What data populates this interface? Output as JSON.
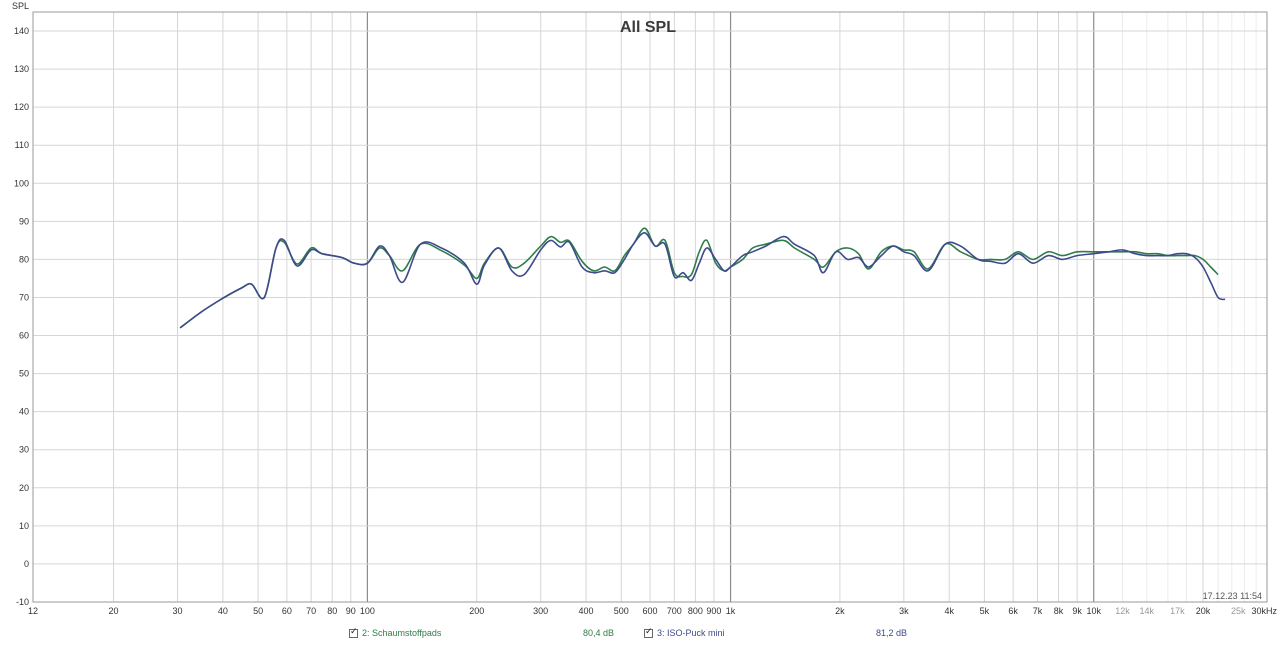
{
  "chart_data": {
    "type": "line",
    "title": "All SPL",
    "ylabel": "SPL",
    "xlabel": "",
    "xscale": "log",
    "xlim": [
      12,
      30000
    ],
    "ylim": [
      -10,
      145
    ],
    "grid": true,
    "y_ticks": [
      -10,
      0,
      10,
      20,
      30,
      40,
      50,
      60,
      70,
      80,
      90,
      100,
      110,
      120,
      130,
      140
    ],
    "x_ticks": [
      {
        "v": 12,
        "label": "12"
      },
      {
        "v": 20,
        "label": "20"
      },
      {
        "v": 30,
        "label": "30"
      },
      {
        "v": 40,
        "label": "40"
      },
      {
        "v": 50,
        "label": "50"
      },
      {
        "v": 60,
        "label": "60"
      },
      {
        "v": 70,
        "label": "70"
      },
      {
        "v": 80,
        "label": "80"
      },
      {
        "v": 90,
        "label": "90"
      },
      {
        "v": 100,
        "label": "100"
      },
      {
        "v": 200,
        "label": "200"
      },
      {
        "v": 300,
        "label": "300"
      },
      {
        "v": 400,
        "label": "400"
      },
      {
        "v": 500,
        "label": "500"
      },
      {
        "v": 600,
        "label": "600"
      },
      {
        "v": 700,
        "label": "700"
      },
      {
        "v": 800,
        "label": "800"
      },
      {
        "v": 900,
        "label": "900"
      },
      {
        "v": 1000,
        "label": "1k"
      },
      {
        "v": 2000,
        "label": "2k"
      },
      {
        "v": 3000,
        "label": "3k"
      },
      {
        "v": 4000,
        "label": "4k"
      },
      {
        "v": 5000,
        "label": "5k"
      },
      {
        "v": 6000,
        "label": "6k"
      },
      {
        "v": 7000,
        "label": "7k"
      },
      {
        "v": 8000,
        "label": "8k"
      },
      {
        "v": 9000,
        "label": "9k"
      },
      {
        "v": 10000,
        "label": "10k"
      },
      {
        "v": 12000,
        "label": "12k"
      },
      {
        "v": 14000,
        "label": "14k"
      },
      {
        "v": 17000,
        "label": "17k"
      },
      {
        "v": 20000,
        "label": "20k"
      },
      {
        "v": 25000,
        "label": "25k"
      },
      {
        "v": 30000,
        "label": "30kHz"
      }
    ],
    "series": [
      {
        "name": "2: Schaumstoffpads",
        "color": "#2e7d4a",
        "x": [
          30.5,
          35,
          40,
          45,
          48,
          52,
          56,
          59,
          64,
          70,
          75,
          85,
          92,
          100,
          108,
          115,
          125,
          140,
          160,
          185,
          200,
          210,
          230,
          250,
          270,
          300,
          320,
          340,
          360,
          390,
          420,
          450,
          480,
          510,
          540,
          580,
          620,
          660,
          700,
          740,
          780,
          820,
          860,
          910,
          960,
          1000,
          1080,
          1150,
          1250,
          1400,
          1500,
          1700,
          1800,
          1950,
          2100,
          2250,
          2400,
          2600,
          2800,
          3000,
          3200,
          3500,
          3900,
          4300,
          4800,
          5200,
          5700,
          6200,
          6800,
          7500,
          8200,
          9000,
          10000,
          11000,
          12000,
          13000,
          14000,
          15000,
          16000,
          17000,
          18000,
          19000,
          20000,
          21000,
          22000
        ],
        "y": [
          62,
          66.3,
          69.8,
          72.5,
          73.5,
          70,
          83,
          84.5,
          78.8,
          83,
          81.5,
          80.5,
          79,
          79,
          83,
          81,
          77,
          84,
          82.3,
          78.5,
          75,
          79,
          83,
          78,
          79,
          83.5,
          86,
          84.5,
          84.8,
          79.5,
          77,
          78,
          77,
          81,
          84,
          88.2,
          83.5,
          85,
          76.5,
          75.5,
          76,
          82,
          85,
          79,
          77,
          78,
          80,
          83,
          84,
          85,
          83,
          80,
          78,
          82,
          83,
          81.5,
          77.5,
          82,
          83.5,
          82.5,
          82,
          77.5,
          84,
          82,
          80,
          80,
          80,
          82,
          80,
          82,
          81,
          82,
          82,
          82,
          82,
          82,
          81.5,
          81.5,
          81,
          81,
          81,
          81,
          80,
          78,
          76
        ]
      },
      {
        "name": "3: ISO-Puck mini",
        "color": "#3f4a8c",
        "x": [
          30.5,
          35,
          40,
          45,
          48,
          52,
          56,
          59,
          64,
          70,
          75,
          85,
          92,
          100,
          108,
          115,
          125,
          140,
          160,
          185,
          200,
          210,
          230,
          250,
          270,
          300,
          320,
          340,
          360,
          390,
          420,
          450,
          480,
          510,
          540,
          580,
          620,
          660,
          700,
          740,
          780,
          820,
          860,
          910,
          960,
          1000,
          1080,
          1150,
          1250,
          1400,
          1500,
          1700,
          1800,
          1950,
          2100,
          2250,
          2400,
          2600,
          2800,
          3000,
          3200,
          3500,
          3900,
          4300,
          4800,
          5200,
          5700,
          6200,
          6800,
          7500,
          8200,
          9000,
          10000,
          11000,
          12000,
          13000,
          14000,
          15000,
          16000,
          17000,
          18000,
          19000,
          20000,
          21000,
          22000,
          23000
        ],
        "y": [
          62,
          66.3,
          69.8,
          72.5,
          73.5,
          70,
          83,
          85,
          78.3,
          82.5,
          81.5,
          80.5,
          79,
          79,
          83.5,
          81,
          74,
          84,
          83,
          79,
          73.5,
          78.5,
          83,
          77,
          76,
          82.5,
          85,
          83.3,
          84.5,
          78,
          76.5,
          77,
          76.5,
          80,
          84,
          87,
          83.5,
          84,
          75.5,
          76.5,
          74.5,
          79,
          83,
          80,
          77,
          78,
          81,
          82,
          83.5,
          86,
          84,
          81,
          76.5,
          82,
          80,
          80.5,
          78,
          81,
          83.5,
          82,
          81,
          77,
          84,
          83.5,
          80,
          79.5,
          79,
          81.5,
          79,
          81,
          80,
          81,
          81.5,
          82,
          82.5,
          81.5,
          81,
          81,
          81,
          81.5,
          81.5,
          80.5,
          78,
          74,
          70,
          69.5
        ]
      }
    ],
    "annotations": {
      "timestamp": "17.12.23 11:54"
    },
    "legend": {
      "items": [
        {
          "label": "2: Schaumstoffpads",
          "value": "80,4 dB",
          "color": "#2e7d4a"
        },
        {
          "label": "3: ISO-Puck mini",
          "value": "81,2 dB",
          "color": "#3f4a8c"
        }
      ],
      "placement": "bottom"
    }
  }
}
